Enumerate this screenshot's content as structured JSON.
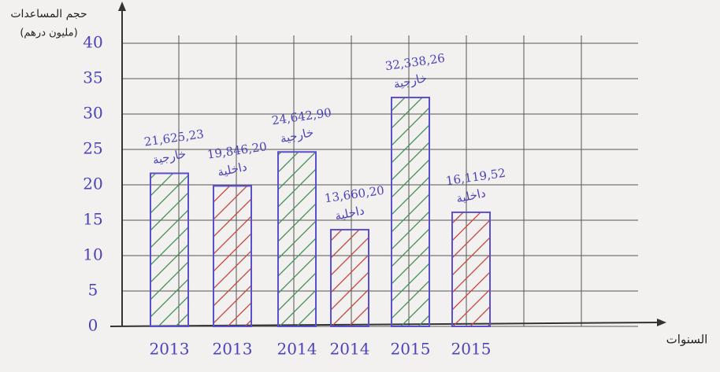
{
  "chart_data": {
    "type": "bar",
    "y_label": "حجم المساعدات",
    "y_unit": "(مليون درهم)",
    "x_label": "السنوات",
    "categories": [
      "2013",
      "2013",
      "2014",
      "2014",
      "2015",
      "2015"
    ],
    "series": [
      {
        "name": "خارجية",
        "color": "#3f8f55",
        "values": [
          21.62523,
          null,
          24.6429,
          null,
          32.33826,
          null
        ],
        "value_labels": [
          "21,625,23",
          null,
          "24,642,90",
          null,
          "32,338,26",
          null
        ]
      },
      {
        "name": "داخلية",
        "color": "#c0453a",
        "values": [
          null,
          19.8462,
          null,
          13.6602,
          null,
          16.11952
        ],
        "value_labels": [
          null,
          "19,846,20",
          null,
          "13,660,20",
          null,
          "16,119,52"
        ]
      }
    ],
    "ylim": [
      0,
      40
    ],
    "yticks": [
      0,
      5,
      10,
      15,
      20,
      25,
      30,
      35,
      40
    ],
    "grid": true
  }
}
